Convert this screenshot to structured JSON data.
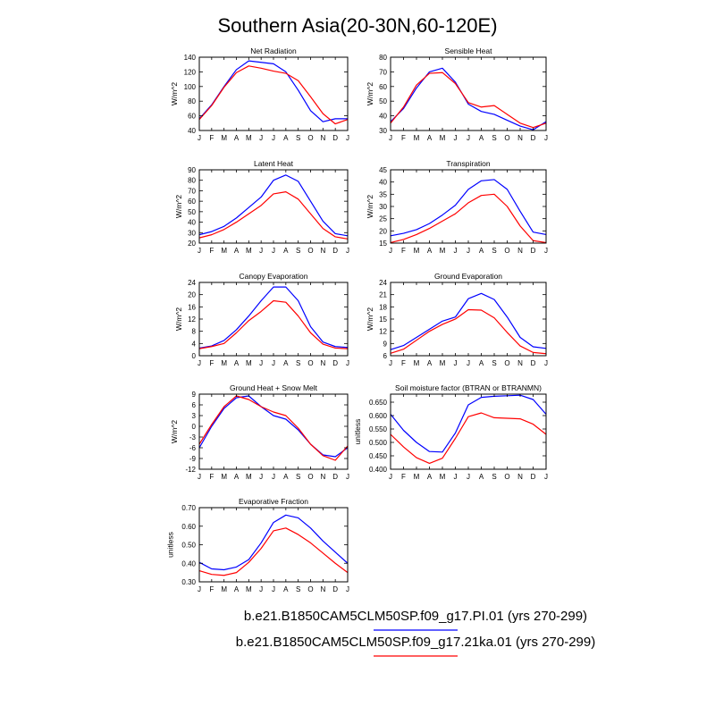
{
  "title": "Southern Asia(20-30N,60-120E)",
  "months": [
    "J",
    "F",
    "M",
    "A",
    "M",
    "J",
    "J",
    "A",
    "S",
    "O",
    "N",
    "D",
    "J"
  ],
  "colors": {
    "pi": "#0000ff",
    "ka21": "#ff0000"
  },
  "legend": [
    {
      "label": "b.e21.B1850CAM5CLM50SP.f09_g17.PI.01 (yrs 270-299)",
      "color": "#0000ff"
    },
    {
      "label": "b.e21.B1850CAM5CLM50SP.f09_g17.21ka.01 (yrs 270-299)",
      "color": "#ff0000"
    }
  ],
  "chart_data": [
    {
      "type": "line",
      "id": "net-radiation",
      "title": "Net Radiation",
      "ylabel": "W/m^2",
      "ylim": [
        40,
        140
      ],
      "yticks": [
        40,
        60,
        80,
        100,
        120,
        140
      ],
      "ytick_labels": [
        "40",
        "60",
        "80",
        "100",
        "120",
        "140"
      ],
      "series": [
        {
          "values": [
            56,
            75,
            100,
            123,
            135,
            133,
            131,
            120,
            95,
            67,
            52,
            56,
            56
          ]
        },
        {
          "values": [
            55,
            74,
            99,
            119,
            128,
            125,
            121,
            118,
            108,
            86,
            63,
            49,
            55
          ]
        }
      ]
    },
    {
      "type": "line",
      "id": "sensible-heat",
      "title": "Sensible Heat",
      "ylabel": "W/m^2",
      "ylim": [
        30,
        80
      ],
      "yticks": [
        30,
        40,
        50,
        60,
        70,
        80
      ],
      "ytick_labels": [
        "30",
        "40",
        "50",
        "60",
        "70",
        "80"
      ],
      "series": [
        {
          "values": [
            36,
            45,
            59,
            70,
            72.5,
            63,
            48,
            43,
            41,
            37,
            33,
            30.5,
            36
          ]
        },
        {
          "values": [
            35,
            46,
            61,
            69,
            69.5,
            62,
            49,
            46,
            47,
            41,
            35,
            32,
            35
          ]
        }
      ]
    },
    {
      "type": "line",
      "id": "latent-heat",
      "title": "Latent Heat",
      "ylabel": "W/m^2",
      "ylim": [
        20,
        90
      ],
      "yticks": [
        20,
        30,
        40,
        50,
        60,
        70,
        80,
        90
      ],
      "ytick_labels": [
        "20",
        "30",
        "40",
        "50",
        "60",
        "70",
        "80",
        "90"
      ],
      "series": [
        {
          "values": [
            28,
            31,
            36,
            44,
            54,
            64,
            80,
            85,
            79,
            60,
            41,
            29,
            27
          ]
        },
        {
          "values": [
            25,
            28,
            33,
            40,
            48,
            56,
            67,
            69,
            62,
            48,
            34,
            26,
            24
          ]
        }
      ]
    },
    {
      "type": "line",
      "id": "transpiration",
      "title": "Transpiration",
      "ylabel": "W/m^2",
      "ylim": [
        15,
        45
      ],
      "yticks": [
        15,
        20,
        25,
        30,
        35,
        40,
        45
      ],
      "ytick_labels": [
        "15",
        "20",
        "25",
        "30",
        "35",
        "40",
        "45"
      ],
      "series": [
        {
          "values": [
            18,
            19,
            20.5,
            23,
            26.5,
            30.5,
            37,
            40.5,
            41,
            37,
            28,
            19.5,
            18.5
          ]
        },
        {
          "values": [
            15.2,
            16.5,
            18.5,
            21,
            24,
            27,
            31.5,
            34.5,
            35,
            30,
            22,
            16,
            15.2
          ]
        }
      ]
    },
    {
      "type": "line",
      "id": "canopy-evaporation",
      "title": "Canopy Evaporation",
      "ylabel": "W/m^2",
      "ylim": [
        0,
        24
      ],
      "yticks": [
        0,
        4,
        8,
        12,
        16,
        20,
        24
      ],
      "ytick_labels": [
        "0",
        "4",
        "8",
        "12",
        "16",
        "20",
        "24"
      ],
      "series": [
        {
          "values": [
            2.5,
            3.2,
            5,
            8.5,
            13,
            18,
            22.5,
            22.5,
            18,
            9.5,
            4.5,
            3,
            2.7
          ]
        },
        {
          "values": [
            2.3,
            3,
            4,
            7.5,
            11.5,
            14.5,
            18,
            17.5,
            13,
            7.5,
            3.8,
            2.5,
            2.3
          ]
        }
      ]
    },
    {
      "type": "line",
      "id": "ground-evaporation",
      "title": "Ground Evaporation",
      "ylabel": "W/m^2",
      "ylim": [
        6,
        24
      ],
      "yticks": [
        6,
        9,
        12,
        15,
        18,
        21,
        24
      ],
      "ytick_labels": [
        "6",
        "9",
        "12",
        "15",
        "18",
        "21",
        "24"
      ],
      "series": [
        {
          "values": [
            7.5,
            8.5,
            10.5,
            12.5,
            14.5,
            15.5,
            20,
            21.3,
            19.8,
            15.5,
            10.5,
            8.2,
            7.8
          ]
        },
        {
          "values": [
            6.6,
            7.6,
            9.8,
            12,
            13.7,
            15,
            17.3,
            17.2,
            15.3,
            11.7,
            8.4,
            6.8,
            6.5
          ]
        }
      ]
    },
    {
      "type": "line",
      "id": "ground-heat-snow-melt",
      "title": "Ground Heat + Snow Melt",
      "ylabel": "W/m^2",
      "ylim": [
        -12,
        9
      ],
      "yticks": [
        -12,
        -9,
        -6,
        -3,
        0,
        3,
        6,
        9
      ],
      "ytick_labels": [
        "-12",
        "-9",
        "-6",
        "-3",
        "0",
        "3",
        "6",
        "9"
      ],
      "series": [
        {
          "values": [
            -6,
            0,
            5,
            8,
            8.5,
            5.5,
            3,
            2,
            -1,
            -5,
            -8,
            -8.5,
            -6
          ]
        },
        {
          "values": [
            -5,
            0.5,
            5.5,
            8.5,
            7.5,
            5.5,
            4,
            3,
            -0.5,
            -5,
            -8.2,
            -9.5,
            -5.5
          ]
        }
      ]
    },
    {
      "type": "line",
      "id": "soil-moisture-factor",
      "title": "Soil moisture factor (BTRAN or BTRANMN)",
      "ylabel": "unitless",
      "ylim": [
        0.4,
        0.68
      ],
      "yticks": [
        0.4,
        0.45,
        0.5,
        0.55,
        0.6,
        0.65
      ],
      "ytick_labels": [
        "0.400",
        "0.450",
        "0.500",
        "0.550",
        "0.600",
        "0.650"
      ],
      "series": [
        {
          "values": [
            0.605,
            0.545,
            0.5,
            0.466,
            0.464,
            0.535,
            0.64,
            0.668,
            0.672,
            0.674,
            0.676,
            0.66,
            0.605
          ]
        },
        {
          "values": [
            0.53,
            0.483,
            0.443,
            0.422,
            0.441,
            0.515,
            0.596,
            0.61,
            0.592,
            0.59,
            0.588,
            0.568,
            0.53
          ]
        }
      ]
    },
    {
      "type": "line",
      "id": "evaporative-fraction",
      "title": "Evaporative Fraction",
      "ylabel": "unitless",
      "ylim": [
        0.3,
        0.7
      ],
      "yticks": [
        0.3,
        0.4,
        0.5,
        0.6,
        0.7
      ],
      "ytick_labels": [
        "0.30",
        "0.40",
        "0.50",
        "0.60",
        "0.70"
      ],
      "series": [
        {
          "values": [
            0.405,
            0.37,
            0.365,
            0.38,
            0.42,
            0.51,
            0.62,
            0.66,
            0.645,
            0.59,
            0.52,
            0.46,
            0.4
          ]
        },
        {
          "values": [
            0.36,
            0.34,
            0.335,
            0.35,
            0.405,
            0.48,
            0.575,
            0.59,
            0.555,
            0.51,
            0.455,
            0.4,
            0.35
          ]
        }
      ]
    }
  ]
}
